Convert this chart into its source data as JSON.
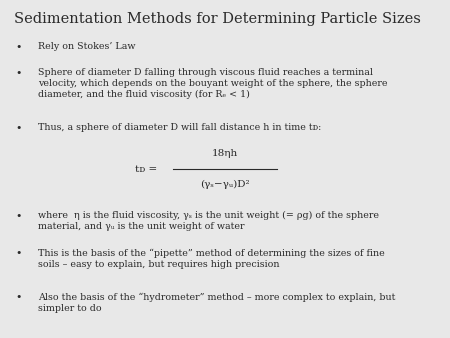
{
  "title": "Sedimentation Methods for Determining Particle Sizes",
  "background_color": "#e8e8e8",
  "text_color": "#2a2a2a",
  "title_fontsize": 10.5,
  "body_fontsize": 6.8,
  "formula_fontsize": 7.5,
  "bullet_points": [
    "Rely on Stokes’ Law",
    "Sphere of diameter D falling through viscous fluid reaches a terminal\nvelocity, which depends on the bouyant weight of the sphere, the sphere\ndiameter, and the fluid viscosity (for Rₑ < 1)",
    "Thus, a sphere of diameter D will fall distance h in time tᴅ:"
  ],
  "bullet_points2": [
    "where  η is the fluid viscosity, γₛ is the unit weight (= ρg) of the sphere\nmaterial, and γᵤ is the unit weight of water",
    "This is the basis of the “pipette” method of determining the sizes of fine\nsoils – easy to explain, but requires high precision",
    "Also the basis of the “hydrometer” method – more complex to explain, but\nsimpler to do"
  ],
  "formula_numerator": "18ηh",
  "formula_denominator": "(γₛ−γᵤ)D²",
  "formula_lhs": "tᴅ ="
}
